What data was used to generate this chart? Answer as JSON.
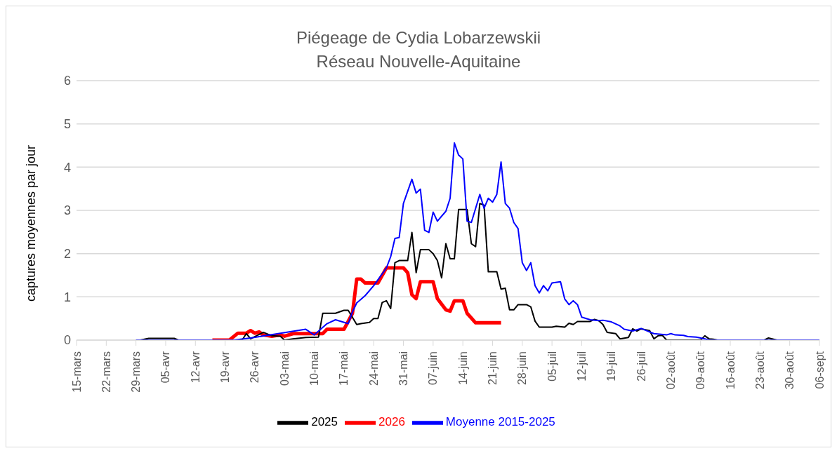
{
  "chart_data": {
    "type": "line",
    "title": "Piégeage de Cydia Lobarzewskii",
    "subtitle": "Réseau Nouvelle-Aquitaine",
    "ylabel": "captures moyennes par jour",
    "xlim": [
      "--03-15",
      "--09-06"
    ],
    "xticks": [
      {
        "value": "--03-15",
        "label": "15-mars"
      },
      {
        "value": "--03-22",
        "label": "22-mars"
      },
      {
        "value": "--03-29",
        "label": "29-mars"
      },
      {
        "value": "--04-05",
        "label": "05-avr"
      },
      {
        "value": "--04-12",
        "label": "12-avr"
      },
      {
        "value": "--04-19",
        "label": "19-avr"
      },
      {
        "value": "--04-26",
        "label": "26-avr"
      },
      {
        "value": "--05-03",
        "label": "03-mai"
      },
      {
        "value": "--05-10",
        "label": "10-mai"
      },
      {
        "value": "--05-17",
        "label": "17-mai"
      },
      {
        "value": "--05-24",
        "label": "24-mai"
      },
      {
        "value": "--05-31",
        "label": "31-mai"
      },
      {
        "value": "--06-07",
        "label": "07-juin"
      },
      {
        "value": "--06-14",
        "label": "14-juin"
      },
      {
        "value": "--06-21",
        "label": "21-juin"
      },
      {
        "value": "--06-28",
        "label": "28-juin"
      },
      {
        "value": "--07-05",
        "label": "05-juil"
      },
      {
        "value": "--07-12",
        "label": "12-juil"
      },
      {
        "value": "--07-19",
        "label": "19-juil"
      },
      {
        "value": "--07-26",
        "label": "26-juil"
      },
      {
        "value": "--08-02",
        "label": "02-août"
      },
      {
        "value": "--08-09",
        "label": "09-août"
      },
      {
        "value": "--08-16",
        "label": "16-août"
      },
      {
        "value": "--08-23",
        "label": "23-août"
      },
      {
        "value": "--08-30",
        "label": "30-août"
      },
      {
        "value": "--09-06",
        "label": "06-sept"
      }
    ],
    "ylim": [
      0,
      6
    ],
    "yticks": [
      0,
      1,
      2,
      3,
      4,
      5,
      6
    ],
    "grid": "y",
    "legend": "bottom",
    "marker": "none",
    "line_style": "solid",
    "series": [
      {
        "name": "2026",
        "color": "#ff0000",
        "x": [
          "--04-16",
          "--04-20",
          "--04-22",
          "--04-24",
          "--04-25",
          "--04-26",
          "--04-27",
          "--04-28",
          "--04-30",
          "--05-02",
          "--05-03",
          "--05-05",
          "--05-12",
          "--05-13",
          "--05-17",
          "--05-19",
          "--05-20",
          "--05-21",
          "--05-22",
          "--05-25",
          "--05-27",
          "--05-31",
          "--06-01",
          "--06-02",
          "--06-03",
          "--06-04",
          "--06-07",
          "--06-08",
          "--06-10",
          "--06-11",
          "--06-12",
          "--06-14",
          "--06-15",
          "--06-17",
          "--06-23"
        ],
        "values": [
          0,
          0,
          0.16,
          0.16,
          0.22,
          0.16,
          0.19,
          0.12,
          0.09,
          0.12,
          0.09,
          0.15,
          0.15,
          0.25,
          0.25,
          0.62,
          1.41,
          1.41,
          1.32,
          1.32,
          1.67,
          1.67,
          1.56,
          1.05,
          0.96,
          1.35,
          1.35,
          0.96,
          0.7,
          0.67,
          0.91,
          0.91,
          0.62,
          0.4,
          0.4
        ]
      },
      {
        "name": "2025",
        "color": "#000000",
        "x": [
          "--03-30",
          "--04-01",
          "--04-07",
          "--04-08",
          "--04-23",
          "--04-24",
          "--04-25",
          "--04-28",
          "--04-30",
          "--05-02",
          "--05-03",
          "--05-05",
          "--05-08",
          "--05-11",
          "--05-12",
          "--05-15",
          "--05-17",
          "--05-18",
          "--05-20",
          "--05-21",
          "--05-23",
          "--05-24",
          "--05-25",
          "--05-26",
          "--05-27",
          "--05-28",
          "--05-29",
          "--05-30",
          "--06-01",
          "--06-02",
          "--06-03",
          "--06-04",
          "--06-06",
          "--06-07",
          "--06-08",
          "--06-09",
          "--06-10",
          "--06-11",
          "--06-12",
          "--06-13",
          "--06-15",
          "--06-16",
          "--06-17",
          "--06-18",
          "--06-19",
          "--06-20",
          "--06-22",
          "--06-23",
          "--06-24",
          "--06-25",
          "--06-26",
          "--06-27",
          "--06-29",
          "--06-30",
          "--07-01",
          "--07-02",
          "--07-05",
          "--07-06",
          "--07-08",
          "--07-09",
          "--07-10",
          "--07-11",
          "--07-14",
          "--07-15",
          "--07-16",
          "--07-17",
          "--07-18",
          "--07-20",
          "--07-21",
          "--07-23",
          "--07-24",
          "--07-25",
          "--07-26",
          "--07-28",
          "--07-29",
          "--07-30",
          "--07-31",
          "--08-01",
          "--08-09",
          "--08-10",
          "--08-11",
          "--08-12",
          "--08-13",
          "--08-24",
          "--08-25",
          "--08-27",
          "--09-06"
        ],
        "values": [
          0,
          0.04,
          0.04,
          0,
          0,
          0.15,
          0.03,
          0.18,
          0.1,
          0.09,
          0,
          0.03,
          0.06,
          0.07,
          0.62,
          0.62,
          0.69,
          0.69,
          0.36,
          0.38,
          0.41,
          0.5,
          0.5,
          0.87,
          0.91,
          0.73,
          1.79,
          1.84,
          1.84,
          2.49,
          1.56,
          2.09,
          2.09,
          2.0,
          1.84,
          1.44,
          2.23,
          1.88,
          1.88,
          3.02,
          3.02,
          2.23,
          2.16,
          3.16,
          3.12,
          1.58,
          1.58,
          1.18,
          1.2,
          0.7,
          0.7,
          0.82,
          0.82,
          0.77,
          0.44,
          0.3,
          0.3,
          0.32,
          0.3,
          0.39,
          0.36,
          0.43,
          0.43,
          0.48,
          0.45,
          0.36,
          0.18,
          0.15,
          0.03,
          0.06,
          0.26,
          0.21,
          0.26,
          0.22,
          0.03,
          0.1,
          0.11,
          0,
          0,
          0.1,
          0.03,
          0.02,
          0,
          0,
          0.05,
          0,
          0
        ]
      },
      {
        "name": "Moyenne 2015-2025",
        "color": "#0000ff",
        "x": [
          "--03-29",
          "--04-21",
          "--04-25",
          "--05-08",
          "--05-10",
          "--05-13",
          "--05-15",
          "--05-18",
          "--05-19",
          "--05-20",
          "--05-22",
          "--05-24",
          "--05-27",
          "--05-28",
          "--05-29",
          "--05-30",
          "--05-31",
          "--06-02",
          "--06-03",
          "--06-04",
          "--06-05",
          "--06-06",
          "--06-07",
          "--06-08",
          "--06-10",
          "--06-11",
          "--06-12",
          "--06-13",
          "--06-14",
          "--06-15",
          "--06-16",
          "--06-18",
          "--06-19",
          "--06-20",
          "--06-21",
          "--06-22",
          "--06-23",
          "--06-24",
          "--06-25",
          "--06-26",
          "--06-27",
          "--06-28",
          "--06-29",
          "--06-30",
          "--07-01",
          "--07-02",
          "--07-03",
          "--07-04",
          "--07-05",
          "--07-07",
          "--07-08",
          "--07-09",
          "--07-10",
          "--07-11",
          "--07-12",
          "--07-14",
          "--07-16",
          "--07-17",
          "--07-19",
          "--07-21",
          "--07-22",
          "--07-24",
          "--07-26",
          "--07-27",
          "--07-29",
          "--08-01",
          "--08-02",
          "--08-03",
          "--08-05",
          "--08-06",
          "--08-08",
          "--08-10",
          "--08-11",
          "--09-06"
        ],
        "values": [
          0,
          0,
          0.05,
          0.25,
          0.12,
          0.38,
          0.47,
          0.38,
          0.65,
          0.86,
          1.03,
          1.26,
          1.67,
          1.93,
          2.35,
          2.37,
          3.16,
          3.72,
          3.4,
          3.49,
          2.54,
          2.49,
          2.96,
          2.75,
          2.98,
          3.28,
          4.56,
          4.28,
          4.19,
          2.75,
          2.72,
          3.37,
          3.05,
          3.28,
          3.19,
          3.37,
          4.12,
          3.16,
          3.05,
          2.72,
          2.58,
          1.79,
          1.61,
          1.79,
          1.26,
          1.09,
          1.26,
          1.14,
          1.32,
          1.35,
          0.95,
          0.82,
          0.91,
          0.82,
          0.53,
          0.47,
          0.45,
          0.46,
          0.42,
          0.33,
          0.25,
          0.21,
          0.27,
          0.23,
          0.15,
          0.12,
          0.15,
          0.12,
          0.11,
          0.08,
          0.07,
          0.03,
          0,
          0
        ]
      }
    ]
  }
}
